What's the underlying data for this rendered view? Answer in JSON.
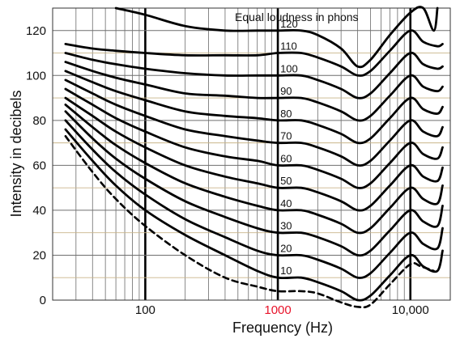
{
  "chart_data": {
    "type": "line",
    "title": "",
    "legend_title": "Equal loudness in phons",
    "xlabel": "Frequency (Hz)",
    "ylabel": "Intensity in decibels",
    "x_scale": "log",
    "xlim": [
      20,
      20000
    ],
    "ylim": [
      0,
      130
    ],
    "grid": true,
    "x_ticks": [
      {
        "value": 100,
        "label": "100",
        "color": "#111111"
      },
      {
        "value": 1000,
        "label": "1000",
        "color": "#e8132a"
      },
      {
        "value": 10000,
        "label": "10,000",
        "color": "#111111"
      }
    ],
    "y_ticks": [
      {
        "value": 0,
        "label": "0"
      },
      {
        "value": 20,
        "label": "20"
      },
      {
        "value": 40,
        "label": "40"
      },
      {
        "value": 60,
        "label": "60"
      },
      {
        "value": 80,
        "label": "80"
      },
      {
        "value": 100,
        "label": "100"
      },
      {
        "value": 120,
        "label": "120"
      }
    ],
    "threshold_curve": {
      "style": "dashed",
      "x": [
        25,
        40,
        60,
        100,
        200,
        400,
        700,
        1000,
        1500,
        2000,
        3000,
        4000,
        5000,
        7000,
        10000,
        12000,
        15000
      ],
      "y": [
        73,
        57,
        45,
        33,
        20,
        10,
        6,
        4,
        4,
        3,
        -1,
        -3,
        -2,
        7,
        16,
        15,
        13
      ]
    },
    "series": [
      {
        "name": "10",
        "x": [
          25,
          40,
          60,
          100,
          200,
          400,
          700,
          1000,
          1500,
          2000,
          3000,
          4000,
          5000,
          7000,
          10000,
          12500,
          16000,
          17500
        ],
        "y": [
          76,
          62,
          51,
          40,
          29,
          20,
          13,
          10,
          10,
          8,
          4,
          0,
          2,
          11,
          20,
          15,
          13,
          22
        ]
      },
      {
        "name": "20",
        "x": [
          25,
          40,
          60,
          100,
          200,
          400,
          700,
          1000,
          1500,
          2000,
          3000,
          4000,
          5000,
          7000,
          10000,
          12500,
          16000,
          17500
        ],
        "y": [
          80,
          67,
          57,
          47,
          36,
          28,
          22,
          20,
          20,
          18,
          14,
          10,
          12,
          21,
          30,
          25,
          23,
          32
        ]
      },
      {
        "name": "30",
        "x": [
          25,
          40,
          60,
          100,
          200,
          400,
          700,
          1000,
          1500,
          2000,
          3000,
          4000,
          5000,
          7000,
          10000,
          12500,
          16000,
          17500
        ],
        "y": [
          84,
          72,
          63,
          54,
          44,
          37,
          32,
          30,
          30,
          28,
          24,
          20,
          22,
          31,
          40,
          35,
          33,
          42
        ]
      },
      {
        "name": "40",
        "x": [
          25,
          40,
          60,
          100,
          200,
          400,
          700,
          1000,
          1500,
          2000,
          3000,
          4000,
          5000,
          7000,
          10000,
          12500,
          16000,
          17500
        ],
        "y": [
          87,
          77,
          69,
          61,
          52,
          46,
          42,
          40,
          40,
          38,
          34,
          30,
          32,
          41,
          50,
          45,
          43,
          51
        ]
      },
      {
        "name": "50",
        "x": [
          25,
          40,
          60,
          100,
          200,
          400,
          700,
          1000,
          1500,
          2000,
          3000,
          4000,
          5000,
          7000,
          10000,
          12500,
          16000,
          17500
        ],
        "y": [
          90,
          82,
          75,
          68,
          60,
          55,
          52,
          50,
          50,
          48,
          44,
          40,
          42,
          51,
          60,
          55,
          53,
          59
        ]
      },
      {
        "name": "60",
        "x": [
          25,
          40,
          60,
          100,
          200,
          400,
          700,
          1000,
          1500,
          2000,
          3000,
          4000,
          5000,
          7000,
          10000,
          12500,
          16000,
          17500
        ],
        "y": [
          94,
          87,
          81,
          75,
          68,
          64,
          62,
          60,
          60,
          58,
          54,
          50,
          52,
          61,
          70,
          65,
          63,
          68
        ]
      },
      {
        "name": "70",
        "x": [
          25,
          40,
          60,
          100,
          200,
          400,
          700,
          1000,
          1500,
          2000,
          3000,
          4000,
          5000,
          7000,
          10000,
          12500,
          16000,
          17500
        ],
        "y": [
          98,
          92,
          87,
          82,
          76,
          73,
          71,
          70,
          70,
          68,
          64,
          60,
          62,
          71,
          80,
          75,
          73,
          77
        ]
      },
      {
        "name": "80",
        "x": [
          25,
          40,
          60,
          100,
          200,
          400,
          700,
          1000,
          1500,
          2000,
          3000,
          4000,
          5000,
          7000,
          10000,
          12500,
          16000,
          17500
        ],
        "y": [
          102,
          97,
          93,
          89,
          84,
          82,
          81,
          80,
          80,
          78,
          74,
          70,
          72,
          81,
          90,
          85,
          83,
          86
        ]
      },
      {
        "name": "90",
        "x": [
          25,
          40,
          60,
          100,
          200,
          400,
          700,
          1000,
          1500,
          2000,
          3000,
          4000,
          5000,
          7000,
          10000,
          12500,
          16000,
          17500
        ],
        "y": [
          106,
          102,
          99,
          96,
          92,
          91,
          90,
          90,
          90,
          88,
          84,
          80,
          82,
          91,
          100,
          95,
          93,
          95
        ]
      },
      {
        "name": "100",
        "x": [
          25,
          40,
          60,
          100,
          200,
          400,
          700,
          1000,
          1500,
          2000,
          3000,
          4000,
          5000,
          7000,
          10000,
          12500,
          16000,
          17500
        ],
        "y": [
          110,
          107,
          105,
          103,
          101,
          100,
          100,
          100,
          100,
          98,
          94,
          90,
          92,
          101,
          110,
          105,
          103,
          104
        ]
      },
      {
        "name": "110",
        "x": [
          25,
          40,
          60,
          100,
          200,
          400,
          700,
          1000,
          1500,
          2000,
          3000,
          4000,
          5000,
          7000,
          10000,
          12500,
          16000,
          17500
        ],
        "y": [
          114,
          112,
          111,
          110,
          109,
          109,
          109,
          110,
          110,
          108,
          104,
          100,
          102,
          111,
          120,
          115,
          113,
          114
        ]
      },
      {
        "name": "120",
        "x": [
          60,
          100,
          200,
          400,
          700,
          1000,
          1500,
          2000,
          3000,
          4000,
          5000,
          7000,
          10000,
          12500,
          15000,
          16000
        ],
        "y": [
          130,
          127,
          122,
          120,
          120,
          120,
          120,
          118,
          112,
          104,
          107,
          118,
          128,
          130,
          120,
          130
        ]
      }
    ]
  }
}
